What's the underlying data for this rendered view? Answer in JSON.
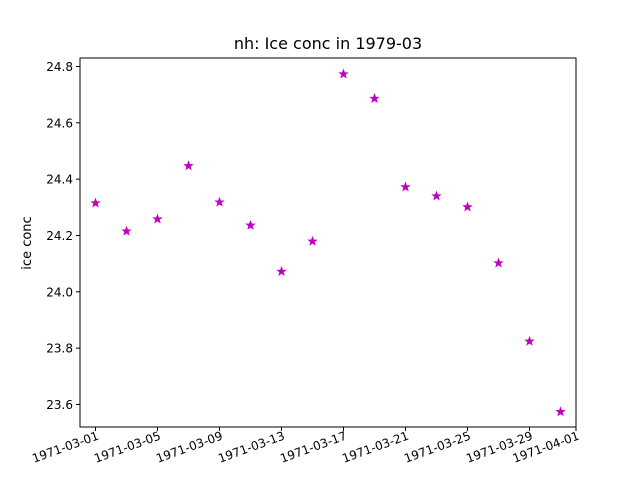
{
  "chart_data": {
    "type": "scatter",
    "title": "nh: Ice conc in 1979-03",
    "xlabel": "",
    "ylabel": "ice conc",
    "marker": "star",
    "color": "#bf00bf",
    "xlim": [
      "1971-02-28",
      "1971-04-01"
    ],
    "ylim": [
      23.52,
      24.83
    ],
    "x_ticks": [
      "1971-03-01",
      "1971-03-05",
      "1971-03-09",
      "1971-03-13",
      "1971-03-17",
      "1971-03-21",
      "1971-03-25",
      "1971-03-29",
      "1971-04-01"
    ],
    "y_ticks": [
      "23.6",
      "23.8",
      "24.0",
      "24.2",
      "24.4",
      "24.6",
      "24.8"
    ],
    "grid": false,
    "series": [
      {
        "points": [
          {
            "x": "1971-03-01",
            "y": 24.315
          },
          {
            "x": "1971-03-03",
            "y": 24.215
          },
          {
            "x": "1971-03-05",
            "y": 24.258
          },
          {
            "x": "1971-03-07",
            "y": 24.447
          },
          {
            "x": "1971-03-09",
            "y": 24.318
          },
          {
            "x": "1971-03-11",
            "y": 24.236
          },
          {
            "x": "1971-03-13",
            "y": 24.072
          },
          {
            "x": "1971-03-15",
            "y": 24.179
          },
          {
            "x": "1971-03-17",
            "y": 24.773
          },
          {
            "x": "1971-03-19",
            "y": 24.686
          },
          {
            "x": "1971-03-21",
            "y": 24.372
          },
          {
            "x": "1971-03-23",
            "y": 24.34
          },
          {
            "x": "1971-03-25",
            "y": 24.301
          },
          {
            "x": "1971-03-27",
            "y": 24.102
          },
          {
            "x": "1971-03-29",
            "y": 23.824
          },
          {
            "x": "1971-03-31",
            "y": 23.574
          }
        ]
      }
    ]
  }
}
